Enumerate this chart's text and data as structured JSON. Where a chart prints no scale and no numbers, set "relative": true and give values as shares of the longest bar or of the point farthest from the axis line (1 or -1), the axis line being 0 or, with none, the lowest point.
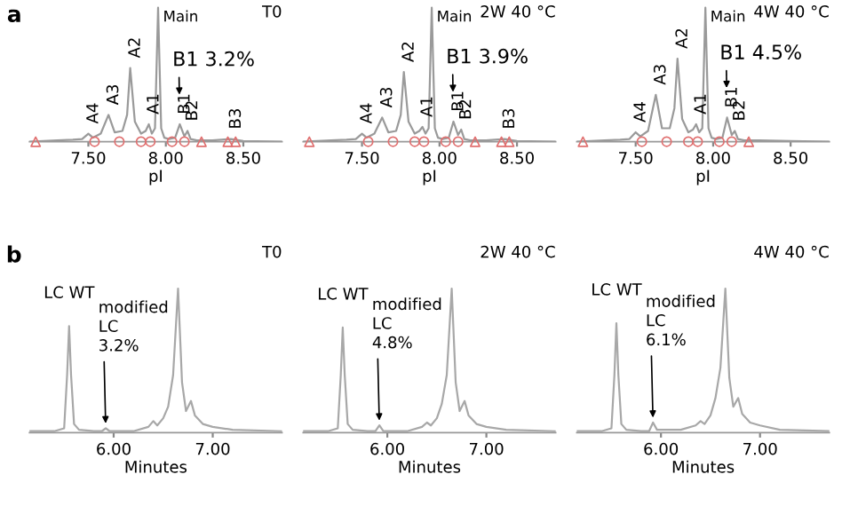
{
  "chart_data": [
    {
      "type": "line",
      "relative": true,
      "title": "T0",
      "xlabel": "pI",
      "xlim": [
        7.12,
        8.75
      ],
      "xticks": [
        {
          "value": 7.5,
          "label": "7.50"
        },
        {
          "value": 8.0,
          "label": "8.00"
        },
        {
          "value": 8.5,
          "label": "8.50"
        }
      ],
      "series": [
        {
          "color": "#9a9a9a",
          "x": [
            7.12,
            7.3,
            7.4,
            7.46,
            7.5,
            7.53,
            7.58,
            7.63,
            7.67,
            7.72,
            7.75,
            7.77,
            7.8,
            7.84,
            7.87,
            7.89,
            7.91,
            7.93,
            7.95,
            7.97,
            7.99,
            8.02,
            8.06,
            8.09,
            8.12,
            8.14,
            8.16,
            8.2,
            8.3,
            8.42,
            8.5,
            8.75
          ],
          "values": [
            0.0,
            0.01,
            0.015,
            0.02,
            0.06,
            0.03,
            0.06,
            0.2,
            0.07,
            0.08,
            0.2,
            0.55,
            0.15,
            0.06,
            0.08,
            0.13,
            0.06,
            0.1,
            1.0,
            0.1,
            0.03,
            0.02,
            0.03,
            0.13,
            0.04,
            0.08,
            0.02,
            0.01,
            0.01,
            0.02,
            0.005,
            0.0
          ]
        },
        {
          "type": "scatter",
          "marker": "triangle",
          "color": "#e07070",
          "x": [
            7.16,
            8.23,
            8.4,
            8.45
          ],
          "values": [
            0,
            0,
            0,
            0
          ]
        },
        {
          "type": "scatter",
          "marker": "circle",
          "color": "#e07070",
          "x": [
            7.54,
            7.7,
            7.84,
            7.9,
            8.04,
            8.12
          ],
          "values": [
            0,
            0,
            0,
            0,
            0,
            0
          ]
        }
      ],
      "annotations": [
        "a",
        {
          "text": "Main",
          "x": 7.95,
          "y": 1.0
        },
        {
          "text": "A4",
          "x": 7.5,
          "y": 0.06
        },
        {
          "text": "A3",
          "x": 7.63,
          "y": 0.2
        },
        {
          "text": "A2",
          "x": 7.77,
          "y": 0.55
        },
        {
          "text": "A1",
          "x": 7.89,
          "y": 0.13
        },
        {
          "text": "B1",
          "x": 8.09,
          "y": 0.13
        },
        {
          "text": "B2",
          "x": 8.14,
          "y": 0.08
        },
        {
          "text": "B3",
          "x": 8.42,
          "y": 0.02
        },
        {
          "text": "B1 3.2%",
          "x": 8.09,
          "y": 0.13
        }
      ]
    },
    {
      "type": "line",
      "relative": true,
      "title": "2W 40 °C",
      "xlabel": "pI",
      "xlim": [
        7.12,
        8.75
      ],
      "xticks": [
        {
          "value": 7.5,
          "label": "7.50"
        },
        {
          "value": 8.0,
          "label": "8.00"
        },
        {
          "value": 8.5,
          "label": "8.50"
        }
      ],
      "series": [
        {
          "color": "#9a9a9a",
          "x": [
            7.12,
            7.3,
            7.4,
            7.46,
            7.5,
            7.53,
            7.58,
            7.63,
            7.67,
            7.72,
            7.75,
            7.77,
            7.8,
            7.84,
            7.87,
            7.89,
            7.91,
            7.93,
            7.95,
            7.97,
            7.99,
            8.02,
            8.06,
            8.09,
            8.12,
            8.14,
            8.16,
            8.2,
            8.3,
            8.42,
            8.5,
            8.75
          ],
          "values": [
            0.0,
            0.01,
            0.015,
            0.02,
            0.06,
            0.03,
            0.06,
            0.18,
            0.07,
            0.08,
            0.2,
            0.52,
            0.15,
            0.06,
            0.08,
            0.11,
            0.06,
            0.1,
            1.0,
            0.1,
            0.03,
            0.02,
            0.03,
            0.15,
            0.05,
            0.09,
            0.02,
            0.01,
            0.01,
            0.02,
            0.005,
            0.0
          ]
        },
        {
          "type": "scatter",
          "marker": "triangle",
          "color": "#e07070",
          "x": [
            7.16,
            8.23,
            8.4,
            8.45
          ],
          "values": [
            0,
            0,
            0,
            0
          ]
        },
        {
          "type": "scatter",
          "marker": "circle",
          "color": "#e07070",
          "x": [
            7.54,
            7.7,
            7.84,
            7.9,
            8.04,
            8.12
          ],
          "values": [
            0,
            0,
            0,
            0,
            0,
            0
          ]
        }
      ],
      "annotations": [
        {
          "text": "Main",
          "x": 7.95,
          "y": 1.0
        },
        {
          "text": "A4",
          "x": 7.5,
          "y": 0.06
        },
        {
          "text": "A3",
          "x": 7.63,
          "y": 0.18
        },
        {
          "text": "A2",
          "x": 7.77,
          "y": 0.52
        },
        {
          "text": "A1",
          "x": 7.89,
          "y": 0.11
        },
        {
          "text": "B1",
          "x": 8.09,
          "y": 0.15
        },
        {
          "text": "B2",
          "x": 8.14,
          "y": 0.09
        },
        {
          "text": "B3",
          "x": 8.42,
          "y": 0.02
        },
        {
          "text": "B1 3.9%",
          "x": 8.09,
          "y": 0.15
        }
      ]
    },
    {
      "type": "line",
      "relative": true,
      "title": "4W 40 °C",
      "xlabel": "pI",
      "xlim": [
        7.12,
        8.75
      ],
      "xticks": [
        {
          "value": 7.5,
          "label": "7.50"
        },
        {
          "value": 8.0,
          "label": "8.00"
        },
        {
          "value": 8.5,
          "label": "8.50"
        }
      ],
      "series": [
        {
          "color": "#9a9a9a",
          "x": [
            7.12,
            7.3,
            7.4,
            7.46,
            7.5,
            7.53,
            7.58,
            7.63,
            7.67,
            7.72,
            7.75,
            7.77,
            7.8,
            7.84,
            7.87,
            7.89,
            7.91,
            7.93,
            7.95,
            7.97,
            7.99,
            8.02,
            8.06,
            8.09,
            8.12,
            8.14,
            8.16,
            8.2,
            8.3,
            8.5,
            8.75
          ],
          "values": [
            0.0,
            0.01,
            0.015,
            0.02,
            0.07,
            0.04,
            0.08,
            0.35,
            0.1,
            0.1,
            0.25,
            0.62,
            0.17,
            0.07,
            0.09,
            0.13,
            0.07,
            0.1,
            1.0,
            0.1,
            0.03,
            0.02,
            0.03,
            0.18,
            0.05,
            0.08,
            0.02,
            0.01,
            0.01,
            0.005,
            0.0
          ]
        },
        {
          "type": "scatter",
          "marker": "triangle",
          "color": "#e07070",
          "x": [
            7.16,
            8.23
          ],
          "values": [
            0,
            0
          ]
        },
        {
          "type": "scatter",
          "marker": "circle",
          "color": "#e07070",
          "x": [
            7.54,
            7.7,
            7.84,
            7.9,
            8.04,
            8.12
          ],
          "values": [
            0,
            0,
            0,
            0,
            0,
            0
          ]
        }
      ],
      "annotations": [
        {
          "text": "Main",
          "x": 7.95,
          "y": 1.0
        },
        {
          "text": "A4",
          "x": 7.5,
          "y": 0.07
        },
        {
          "text": "A3",
          "x": 7.63,
          "y": 0.35
        },
        {
          "text": "A2",
          "x": 7.77,
          "y": 0.62
        },
        {
          "text": "A1",
          "x": 7.89,
          "y": 0.13
        },
        {
          "text": "B1",
          "x": 8.09,
          "y": 0.18
        },
        {
          "text": "B2",
          "x": 8.14,
          "y": 0.08
        },
        {
          "text": "B1 4.5%",
          "x": 8.09,
          "y": 0.18
        }
      ]
    },
    {
      "type": "line",
      "relative": true,
      "title": "T0",
      "xlabel": "Minutes",
      "xlim": [
        5.15,
        7.7
      ],
      "xticks": [
        {
          "value": 6.0,
          "label": "6.00"
        },
        {
          "value": 7.0,
          "label": "7.00"
        }
      ],
      "series": [
        {
          "color": "#a8a8a8",
          "x": [
            5.15,
            5.4,
            5.5,
            5.53,
            5.55,
            5.57,
            5.6,
            5.65,
            5.8,
            5.88,
            5.92,
            5.96,
            6.2,
            6.35,
            6.4,
            6.44,
            6.5,
            6.55,
            6.6,
            6.65,
            6.69,
            6.73,
            6.78,
            6.82,
            6.9,
            7.0,
            7.2,
            7.7
          ],
          "values": [
            0.01,
            0.01,
            0.03,
            0.4,
            0.74,
            0.4,
            0.06,
            0.02,
            0.01,
            0.01,
            0.03,
            0.01,
            0.01,
            0.04,
            0.08,
            0.05,
            0.1,
            0.18,
            0.4,
            1.0,
            0.35,
            0.15,
            0.22,
            0.12,
            0.06,
            0.04,
            0.02,
            0.01
          ]
        }
      ],
      "annotations": [
        "b",
        {
          "text": "LC WT",
          "x": 5.55,
          "y": 0.74
        },
        {
          "text": "modified\nLC\n3.2%",
          "x": 5.92,
          "y": 0.03
        }
      ]
    },
    {
      "type": "line",
      "relative": true,
      "title": "2W 40 °C",
      "xlabel": "Minutes",
      "xlim": [
        5.15,
        7.7
      ],
      "xticks": [
        {
          "value": 6.0,
          "label": "6.00"
        },
        {
          "value": 7.0,
          "label": "7.00"
        }
      ],
      "series": [
        {
          "color": "#a8a8a8",
          "x": [
            5.15,
            5.4,
            5.5,
            5.53,
            5.55,
            5.57,
            5.6,
            5.65,
            5.8,
            5.88,
            5.92,
            5.96,
            6.2,
            6.35,
            6.4,
            6.44,
            6.5,
            6.55,
            6.6,
            6.65,
            6.69,
            6.73,
            6.78,
            6.82,
            6.9,
            7.0,
            7.2,
            7.7
          ],
          "values": [
            0.01,
            0.01,
            0.03,
            0.4,
            0.73,
            0.4,
            0.06,
            0.02,
            0.01,
            0.01,
            0.05,
            0.01,
            0.01,
            0.04,
            0.07,
            0.05,
            0.1,
            0.2,
            0.4,
            1.0,
            0.35,
            0.15,
            0.22,
            0.12,
            0.06,
            0.04,
            0.02,
            0.01
          ]
        }
      ],
      "annotations": [
        {
          "text": "LC WT",
          "x": 5.55,
          "y": 0.73
        },
        {
          "text": "modified\nLC\n4.8%",
          "x": 5.92,
          "y": 0.05
        }
      ]
    },
    {
      "type": "line",
      "relative": true,
      "title": "4W 40 °C",
      "xlabel": "Minutes",
      "xlim": [
        5.15,
        7.7
      ],
      "xticks": [
        {
          "value": 6.0,
          "label": "6.00"
        },
        {
          "value": 7.0,
          "label": "7.00"
        }
      ],
      "series": [
        {
          "color": "#a8a8a8",
          "x": [
            5.15,
            5.4,
            5.5,
            5.53,
            5.55,
            5.57,
            5.6,
            5.65,
            5.8,
            5.88,
            5.92,
            5.96,
            6.2,
            6.35,
            6.4,
            6.44,
            6.5,
            6.55,
            6.6,
            6.65,
            6.69,
            6.73,
            6.78,
            6.82,
            6.9,
            7.0,
            7.2,
            7.7
          ],
          "values": [
            0.01,
            0.01,
            0.03,
            0.4,
            0.76,
            0.4,
            0.06,
            0.02,
            0.01,
            0.01,
            0.07,
            0.02,
            0.02,
            0.05,
            0.08,
            0.06,
            0.12,
            0.24,
            0.45,
            1.0,
            0.38,
            0.18,
            0.24,
            0.13,
            0.07,
            0.05,
            0.02,
            0.01
          ]
        }
      ],
      "annotations": [
        {
          "text": "LC WT",
          "x": 5.55,
          "y": 0.76
        },
        {
          "text": "modified\nLC\n6.1%",
          "x": 5.92,
          "y": 0.07
        }
      ]
    }
  ]
}
